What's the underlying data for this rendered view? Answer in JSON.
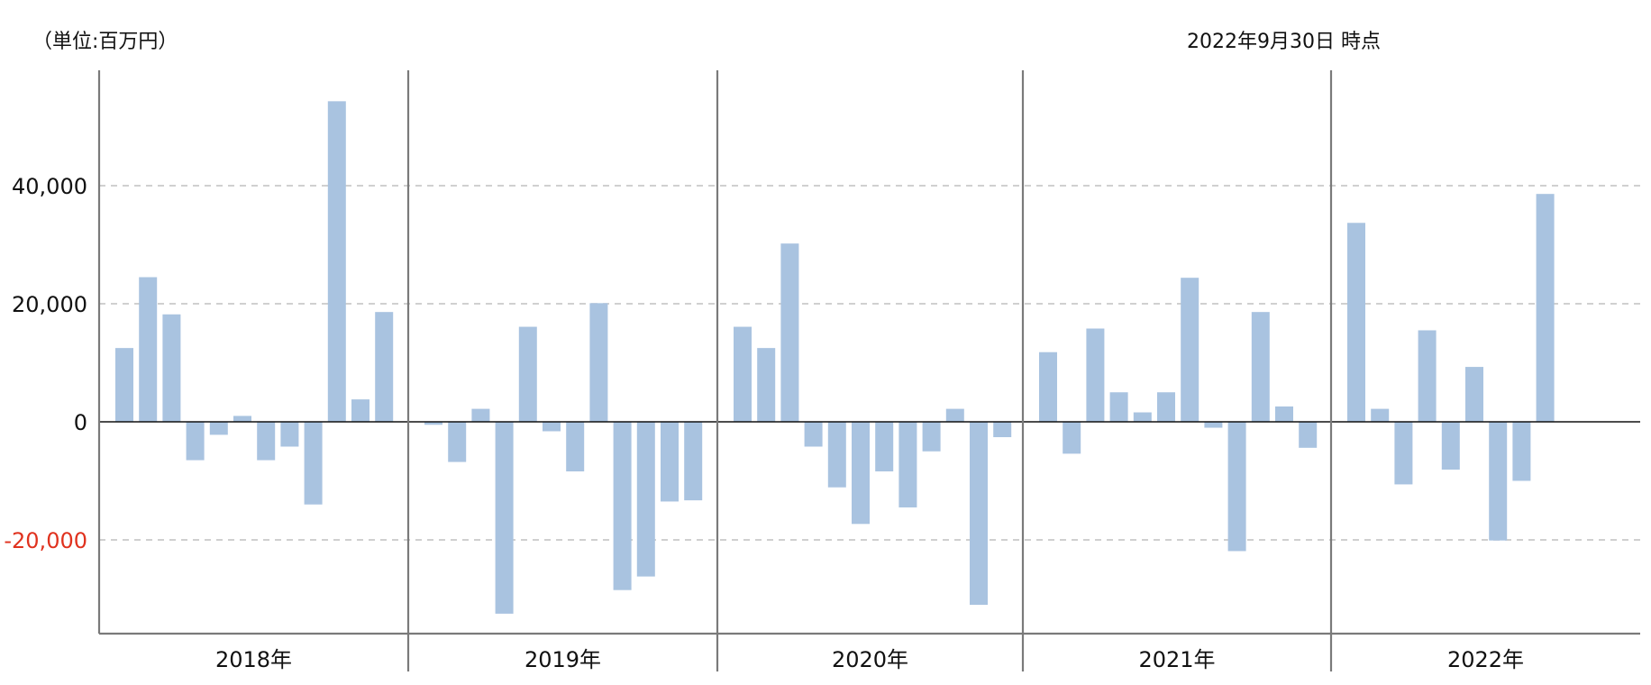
{
  "header": {
    "unit": "（単位:百万円）",
    "as_of": "2022年9月30日 時点"
  },
  "chart_data": {
    "type": "bar",
    "ylim": [
      -36000,
      59000
    ],
    "yticks": [
      {
        "value": 40000,
        "label": "40,000"
      },
      {
        "value": 20000,
        "label": "20,000"
      },
      {
        "value": 0,
        "label": "0"
      },
      {
        "value": -20000,
        "label": "-20,000"
      }
    ],
    "grid": "dashed-horizontal",
    "colors": {
      "bar": "#a9c3e0",
      "negative_tick": "#e0321e",
      "axis": "#7a7a7a",
      "zero_line": "#111111",
      "grid": "#c0c0c0"
    },
    "groups": [
      {
        "label": "2018年",
        "values": [
          12500,
          24500,
          18200,
          -6500,
          -2200,
          1000,
          -6500,
          -4200,
          -14000,
          54300,
          3800,
          18600
        ]
      },
      {
        "label": "2019年",
        "values": [
          -500,
          -6800,
          2200,
          -32500,
          16100,
          -1600,
          -8400,
          20100,
          -28500,
          -26200,
          -13500,
          -13300
        ]
      },
      {
        "label": "2020年",
        "values": [
          16100,
          12500,
          30200,
          -4200,
          -11100,
          -17300,
          -8400,
          -14500,
          -5000,
          2200,
          -31000,
          -2600
        ]
      },
      {
        "label": "2021年",
        "values": [
          11800,
          -5400,
          15800,
          5000,
          1600,
          5000,
          24400,
          -1000,
          -21900,
          18600,
          2600,
          -4400
        ]
      },
      {
        "label": "2022年",
        "values": [
          33700,
          2200,
          -10600,
          15500,
          -8100,
          9300,
          -20100,
          -10000,
          38600
        ]
      }
    ]
  }
}
